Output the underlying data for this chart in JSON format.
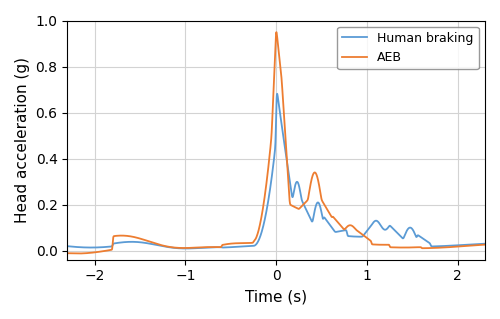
{
  "title": "",
  "xlabel": "Time (s)",
  "ylabel": "Head acceleration (g)",
  "xlim": [
    -2.3,
    2.3
  ],
  "ylim": [
    -0.04,
    1.0
  ],
  "yticks": [
    0.0,
    0.2,
    0.4,
    0.6,
    0.8,
    1.0
  ],
  "xticks": [
    -2,
    -1,
    0,
    1,
    2
  ],
  "human_color": "#5B9BD5",
  "aeb_color": "#ED7D31",
  "legend_labels": [
    "Human braking",
    "AEB"
  ],
  "figsize": [
    5.0,
    3.19
  ],
  "dpi": 100
}
